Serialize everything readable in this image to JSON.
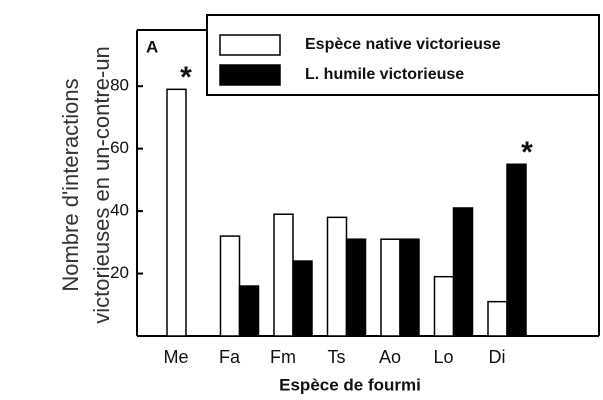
{
  "chart_data": {
    "type": "bar",
    "panel_label": "A",
    "ylabel": [
      "Nombre d'interactions",
      "victorieuses  en un-contre-un"
    ],
    "xlabel": "Espèce de fourmi",
    "categories": [
      "Me",
      "Fa",
      "Fm",
      "Ts",
      "Ao",
      "Lo",
      "Di"
    ],
    "series": [
      {
        "name": "Espèce native victorieuse",
        "color": "#ffffff",
        "values": [
          79,
          32,
          39,
          38,
          31,
          19,
          11
        ]
      },
      {
        "name": "L. humile victorieuse",
        "color": "#000000",
        "values": [
          0,
          16,
          24,
          31,
          31,
          41,
          55
        ]
      }
    ],
    "annotations": [
      "*",
      "*"
    ],
    "ylim": [
      0,
      98
    ],
    "yticks": [
      20,
      40,
      60,
      80
    ],
    "grid": false,
    "legend": "top right"
  }
}
